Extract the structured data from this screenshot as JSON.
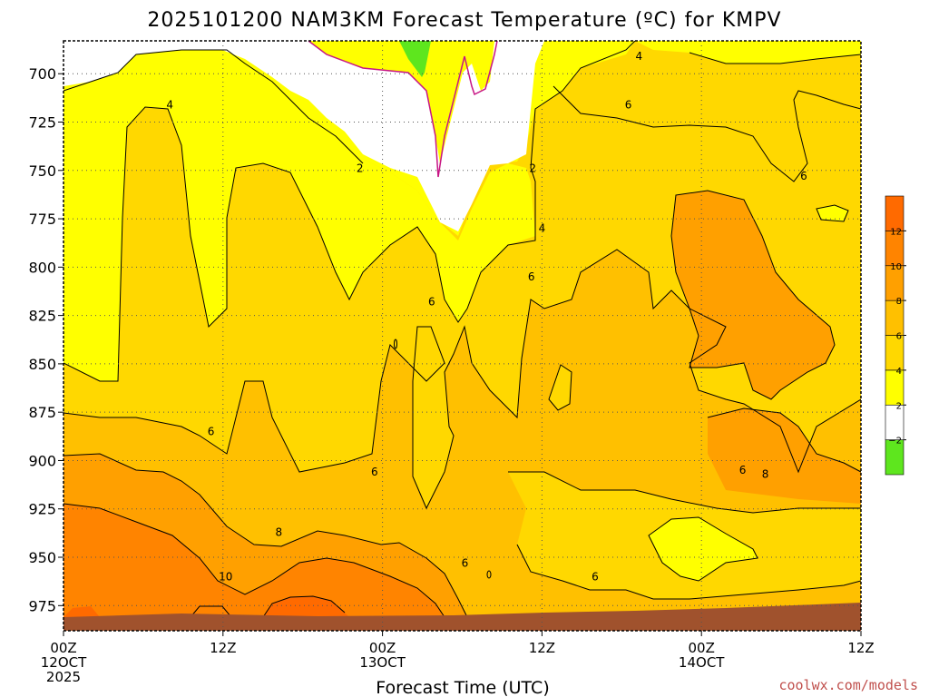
{
  "title": "2025101200 NAM3KM Forecast Temperature (ºC) for KMPV",
  "credit": "coolwx.com/models",
  "colors": {
    "band_below_-2": "#5ee61e",
    "band_-2_2": "#ffffff",
    "band_2_4": "#ffff00",
    "band_4_6": "#ffd800",
    "band_6_8": "#ffc000",
    "band_8_10": "#ffa000",
    "band_10_12": "#ff8400",
    "band_above_12": "#ff6a00",
    "terrain": "#a0522d",
    "contour_line": "#000000",
    "freezing_line": "#c71585"
  },
  "chart_data": {
    "type": "heatmap",
    "title": "2025101200 NAM3KM Forecast Temperature (ºC) for KMPV",
    "xlabel": "Forecast Time (UTC)",
    "ylabel": "",
    "x_range_hours": [
      0,
      60
    ],
    "x_ticks": [
      {
        "hour": 0,
        "lines": [
          "00Z",
          "12OCT",
          "2025"
        ]
      },
      {
        "hour": 12,
        "lines": [
          "12Z"
        ]
      },
      {
        "hour": 24,
        "lines": [
          "00Z",
          "13OCT"
        ]
      },
      {
        "hour": 36,
        "lines": [
          "12Z"
        ]
      },
      {
        "hour": 48,
        "lines": [
          "00Z",
          "14OCT"
        ]
      },
      {
        "hour": 60,
        "lines": [
          "12Z"
        ]
      }
    ],
    "y_axis": "pressure (hPa)",
    "y_range": [
      988,
      683
    ],
    "y_ticks": [
      "700",
      "725",
      "750",
      "775",
      "800",
      "825",
      "850",
      "875",
      "900",
      "925",
      "950",
      "975"
    ],
    "colorbar": {
      "boundaries": [
        -2,
        2,
        4,
        6,
        8,
        10,
        12
      ],
      "tick_labels": [
        "−2",
        "2",
        "4",
        "6",
        "8",
        "10",
        "12"
      ]
    },
    "contour_labels": [
      {
        "text": "4",
        "hour": 8.0,
        "p": 716
      },
      {
        "text": "4",
        "hour": 43.3,
        "p": 691
      },
      {
        "text": "4",
        "hour": 36.0,
        "p": 780
      },
      {
        "text": "2",
        "hour": 22.3,
        "p": 749
      },
      {
        "text": "2",
        "hour": 35.3,
        "p": 749
      },
      {
        "text": "6",
        "hour": 42.5,
        "p": 716
      },
      {
        "text": "6",
        "hour": 55.7,
        "p": 753
      },
      {
        "text": "6",
        "hour": 35.2,
        "p": 805
      },
      {
        "text": "6",
        "hour": 27.7,
        "p": 818
      },
      {
        "text": "6",
        "hour": 11.1,
        "p": 885
      },
      {
        "text": "6",
        "hour": 23.4,
        "p": 906
      },
      {
        "text": "6",
        "hour": 30.2,
        "p": 953
      },
      {
        "text": "6",
        "hour": 40.0,
        "p": 960
      },
      {
        "text": "6",
        "hour": 51.1,
        "p": 905
      },
      {
        "text": "8",
        "hour": 16.2,
        "p": 937
      },
      {
        "text": "8",
        "hour": 52.8,
        "p": 907
      },
      {
        "text": "10",
        "hour": 12.2,
        "p": 960
      }
    ]
  }
}
